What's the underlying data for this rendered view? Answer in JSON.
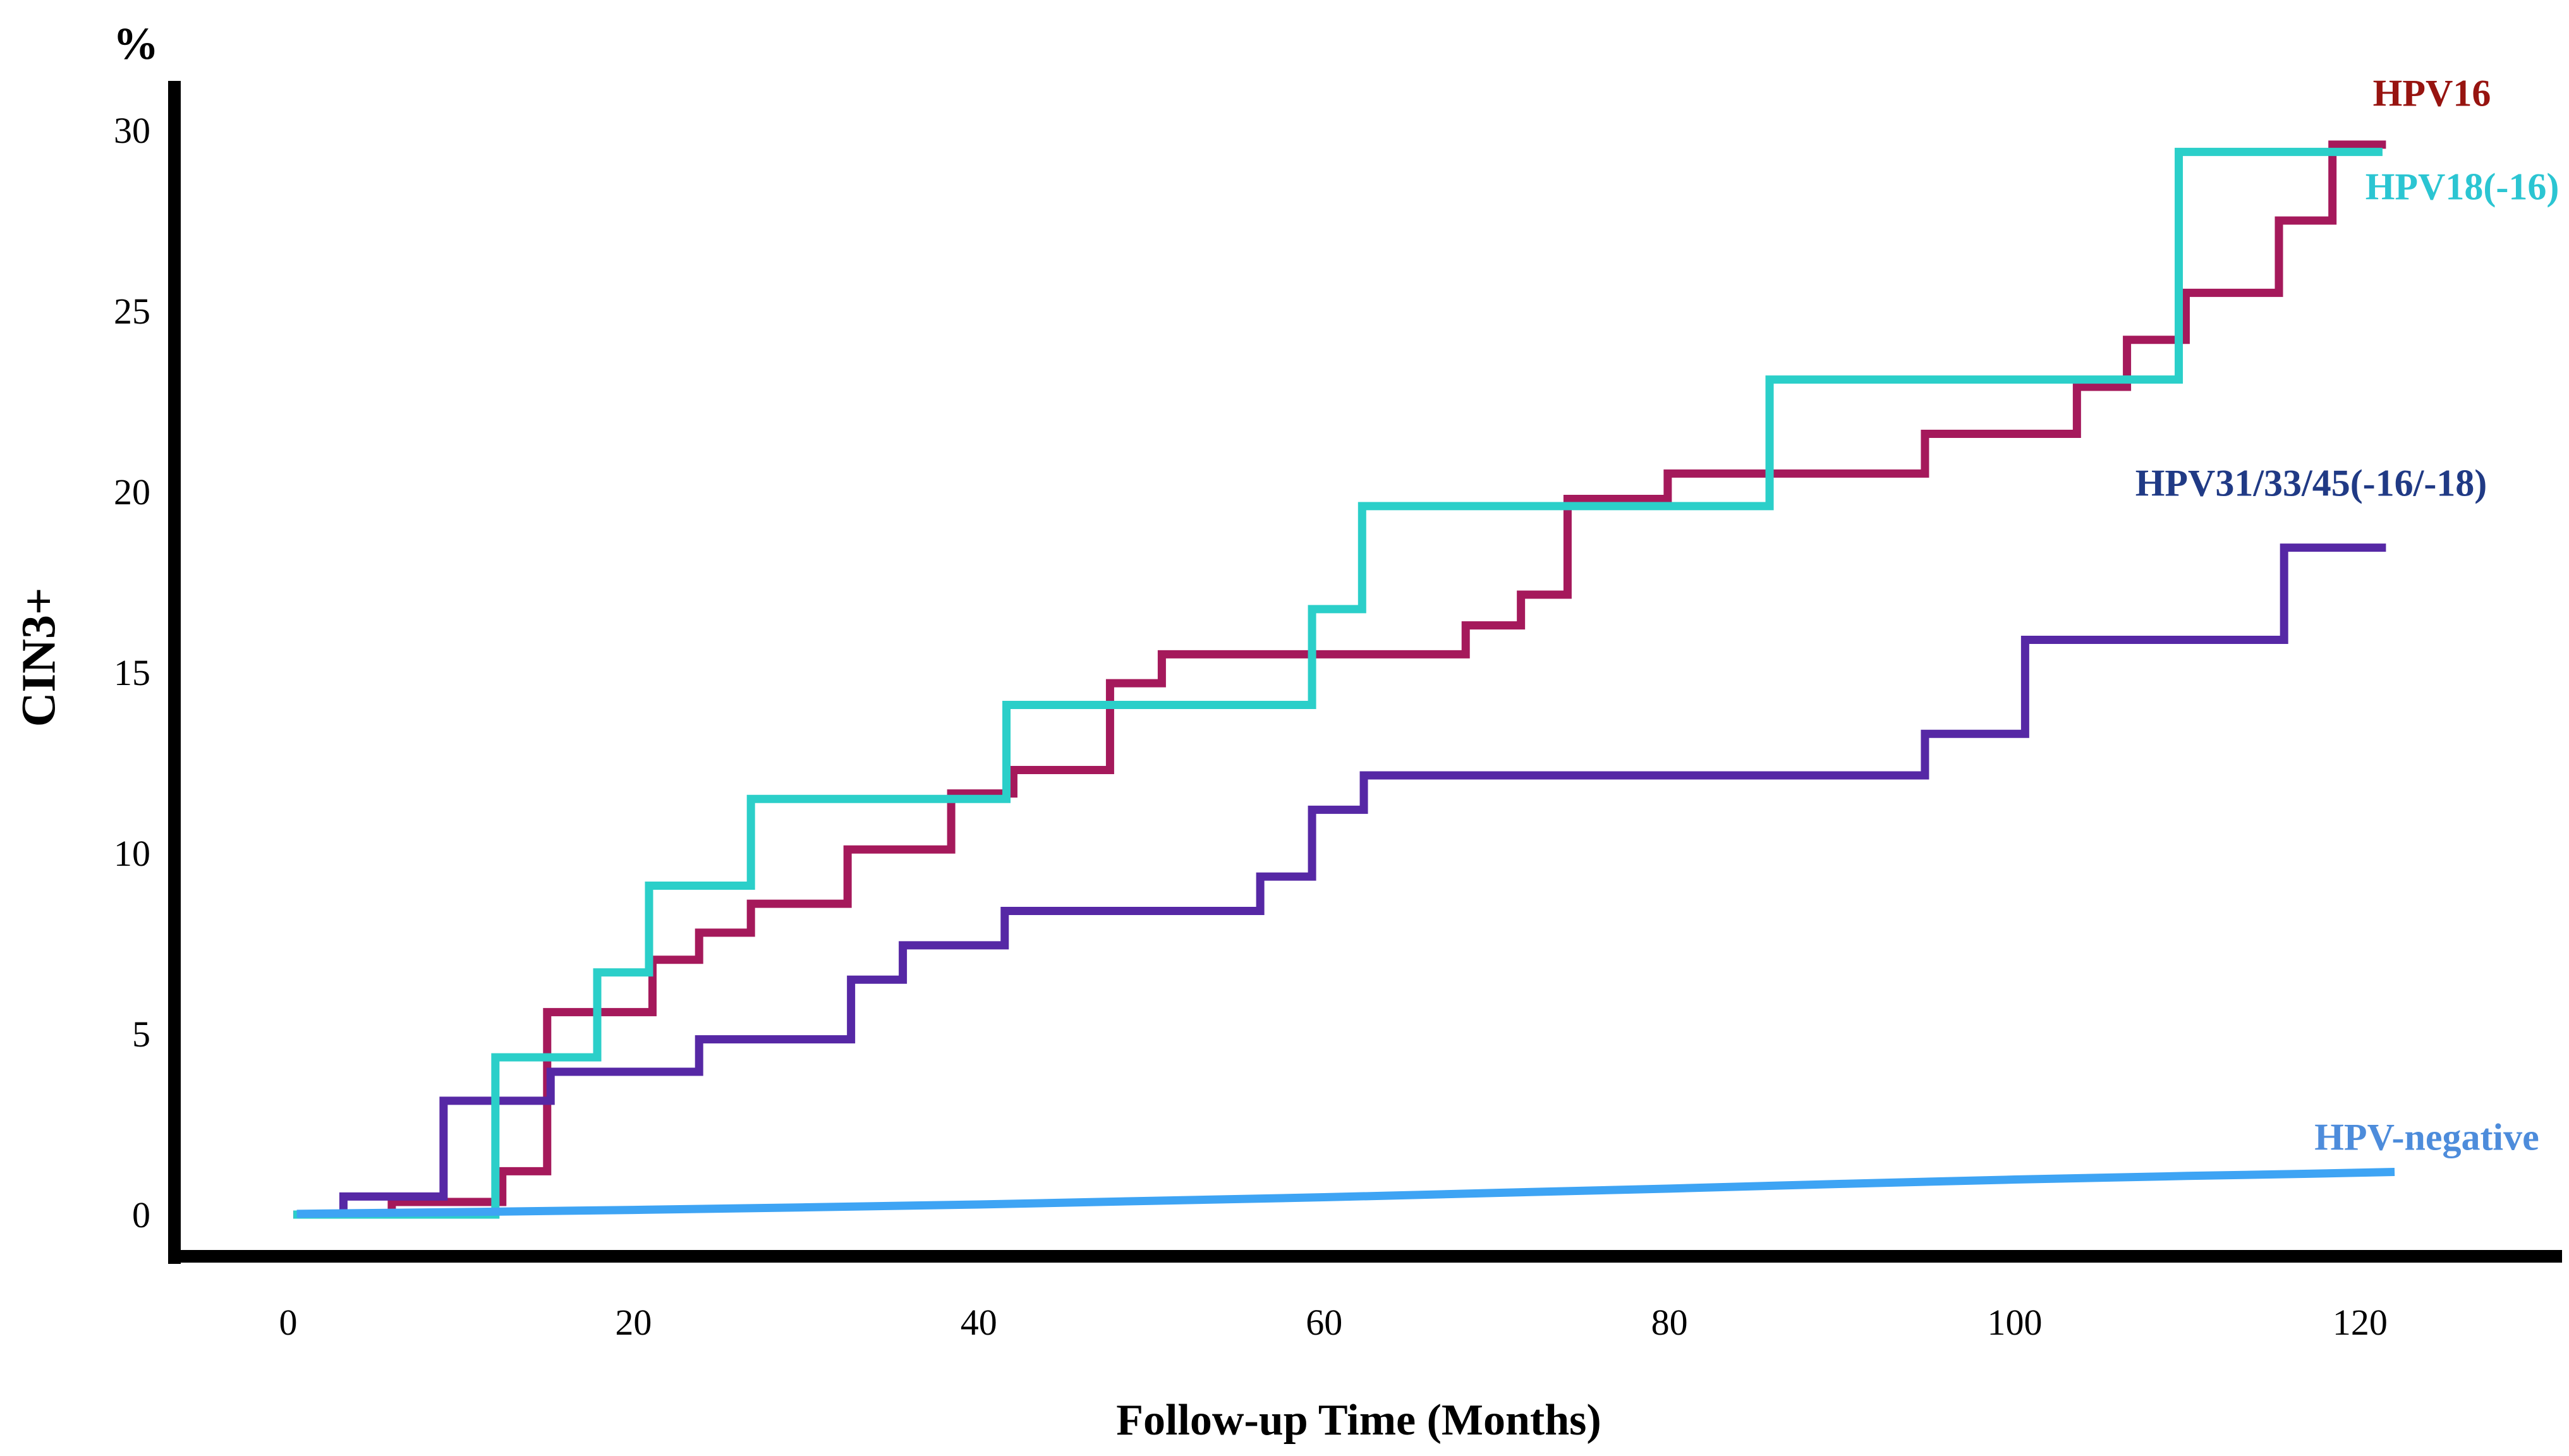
{
  "chart_data": {
    "type": "line",
    "subtype": "kaplan-meier-step-cumulative-incidence",
    "title": "",
    "xlabel": "Follow-up Time (Months)",
    "ylabel": "CIN3+",
    "y_unit": "%",
    "xlim": [
      0,
      132
    ],
    "ylim": [
      0,
      30
    ],
    "grid": false,
    "legend_position": "inline-labels-right",
    "x_ticks": [
      0,
      20,
      40,
      60,
      80,
      100,
      120
    ],
    "y_ticks": [
      0,
      5,
      10,
      15,
      20,
      25,
      30
    ],
    "axis_color": "#000000",
    "series": [
      {
        "id": "hpv16",
        "label": "HPV16",
        "color": "#A5195B",
        "label_color": "#971410",
        "curve": "step",
        "steps": [
          [
            0,
            0
          ],
          [
            6,
            0.35
          ],
          [
            12.4,
            1.2
          ],
          [
            15,
            5.6
          ],
          [
            21.1,
            7.05
          ],
          [
            23.8,
            7.8
          ],
          [
            26.8,
            8.6
          ],
          [
            32.4,
            10.1
          ],
          [
            38.4,
            11.65
          ],
          [
            42,
            12.3
          ],
          [
            47.6,
            14.7
          ],
          [
            50.6,
            15.5
          ],
          [
            68.2,
            16.3
          ],
          [
            71.4,
            17.15
          ],
          [
            74.1,
            19.8
          ],
          [
            79.9,
            20.5
          ],
          [
            94.8,
            21.6
          ],
          [
            103.6,
            22.9
          ],
          [
            106.5,
            24.2
          ],
          [
            109.9,
            25.5
          ],
          [
            115.3,
            27.5
          ],
          [
            118.4,
            29.6
          ]
        ],
        "end_t": 121.5
      },
      {
        "id": "hpv18",
        "label": "HPV18(-16)",
        "color": "#2BCFC9",
        "label_color": "#2BC5D2",
        "curve": "step",
        "steps": [
          [
            0,
            0
          ],
          [
            12,
            4.35
          ],
          [
            17.9,
            6.7
          ],
          [
            20.9,
            9.1
          ],
          [
            26.8,
            11.5
          ],
          [
            41.6,
            14.1
          ],
          [
            59.3,
            16.75
          ],
          [
            62.2,
            19.6
          ],
          [
            85.8,
            23.1
          ],
          [
            109.5,
            29.4
          ]
        ],
        "end_t": 121.3
      },
      {
        "id": "hpv313345",
        "label": "HPV31/33/45(-16/-18)",
        "color": "#5628A5",
        "label_color": "#203A85",
        "curve": "step",
        "steps": [
          [
            0,
            0
          ],
          [
            3.2,
            0.5
          ],
          [
            9,
            3.15
          ],
          [
            15.2,
            3.95
          ],
          [
            23.8,
            4.85
          ],
          [
            32.6,
            6.5
          ],
          [
            35.6,
            7.45
          ],
          [
            41.5,
            8.4
          ],
          [
            56.3,
            9.35
          ],
          [
            59.3,
            11.2
          ],
          [
            62.3,
            12.15
          ],
          [
            94.8,
            13.3
          ],
          [
            100.6,
            15.9
          ],
          [
            115.6,
            18.45
          ]
        ],
        "end_t": 121.5
      },
      {
        "id": "hpvneg",
        "label": "HPV-negative",
        "color": "#3EA4F4",
        "label_color": "#4D8CDB",
        "curve": "line",
        "points": [
          [
            0.5,
            0.02
          ],
          [
            10,
            0.07
          ],
          [
            20,
            0.13
          ],
          [
            30,
            0.2
          ],
          [
            40,
            0.28
          ],
          [
            50,
            0.38
          ],
          [
            60,
            0.48
          ],
          [
            70,
            0.6
          ],
          [
            80,
            0.72
          ],
          [
            90,
            0.85
          ],
          [
            100,
            0.97
          ],
          [
            110,
            1.07
          ],
          [
            117,
            1.13
          ],
          [
            122,
            1.18
          ]
        ]
      }
    ]
  }
}
